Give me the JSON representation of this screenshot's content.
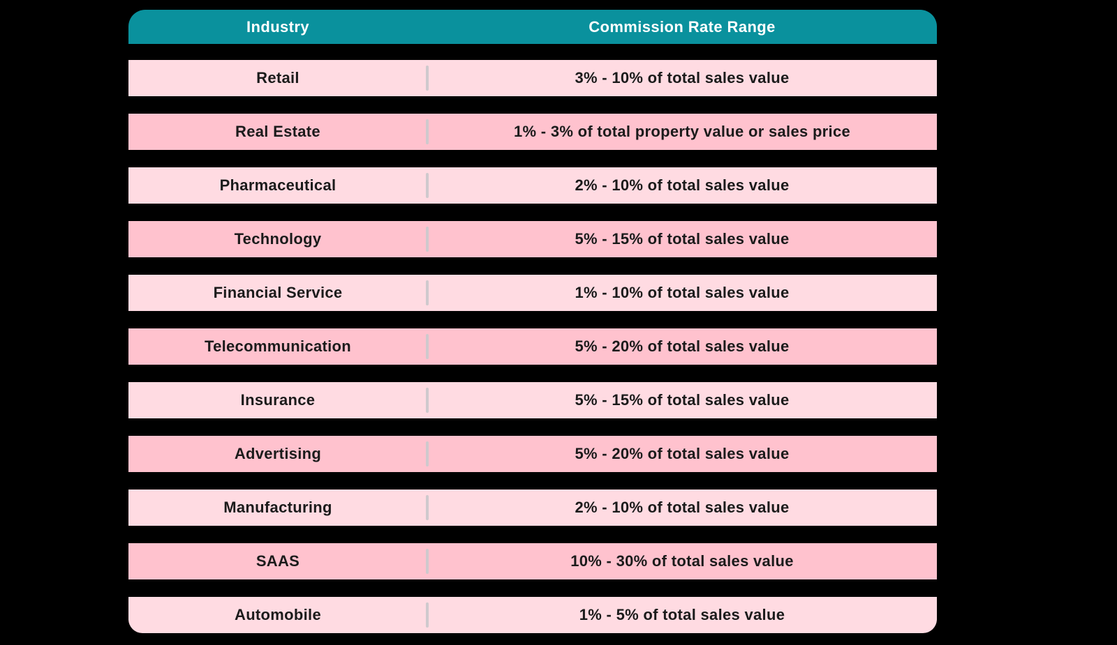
{
  "page": {
    "background": "#000000"
  },
  "table": {
    "header": {
      "industry_label": "Industry",
      "rate_label": "Commission Rate Range"
    },
    "rows": [
      {
        "industry": "Retail",
        "rate": "3% - 10% of total sales value"
      },
      {
        "industry": "Real Estate",
        "rate": "1% - 3% of total property value or sales price"
      },
      {
        "industry": "Pharmaceutical",
        "rate": "2% - 10% of total sales value"
      },
      {
        "industry": "Technology",
        "rate": "5% - 15% of total sales value"
      },
      {
        "industry": "Financial Service",
        "rate": "1% - 10% of total sales value"
      },
      {
        "industry": "Telecommunication",
        "rate": "5% - 20% of total sales value"
      },
      {
        "industry": "Insurance",
        "rate": "5% - 15% of total sales value"
      },
      {
        "industry": "Advertising",
        "rate": "5% - 20% of total sales value"
      },
      {
        "industry": "Manufacturing",
        "rate": "2% - 10% of total sales value"
      },
      {
        "industry": "SAAS",
        "rate": "10% - 30% of total sales value"
      },
      {
        "industry": "Automobile",
        "rate": "1% - 5% of total sales value"
      }
    ],
    "colors": {
      "header_bg": "#0a919d",
      "header_text": "#ffffff",
      "row_light": "#ffdbe2",
      "row_dark": "#ffc2ce",
      "row_text": "#1b1b1b",
      "divider": "#cfc9cd",
      "page_bg": "#000000"
    }
  },
  "chart_data": {
    "type": "table",
    "title": "",
    "columns": [
      "Industry",
      "Commission Rate Range"
    ],
    "rows": [
      [
        "Retail",
        "3% - 10% of total sales value"
      ],
      [
        "Real Estate",
        "1% - 3% of total property value or sales price"
      ],
      [
        "Pharmaceutical",
        "2% - 10% of total sales value"
      ],
      [
        "Technology",
        "5% - 15% of total sales value"
      ],
      [
        "Financial Service",
        "1% - 10% of total sales value"
      ],
      [
        "Telecommunication",
        "5% - 20% of total sales value"
      ],
      [
        "Insurance",
        "5% - 15% of total sales value"
      ],
      [
        "Advertising",
        "5% - 20% of total sales value"
      ],
      [
        "Manufacturing",
        "2% - 10% of total sales value"
      ],
      [
        "SAAS",
        "10% - 30% of total sales value"
      ],
      [
        "Automobile",
        "1% - 5% of total sales value"
      ]
    ],
    "commission_ranges_pct": [
      {
        "industry": "Retail",
        "min": 3,
        "max": 10,
        "basis": "total sales value"
      },
      {
        "industry": "Real Estate",
        "min": 1,
        "max": 3,
        "basis": "total property value or sales price"
      },
      {
        "industry": "Pharmaceutical",
        "min": 2,
        "max": 10,
        "basis": "total sales value"
      },
      {
        "industry": "Technology",
        "min": 5,
        "max": 15,
        "basis": "total sales value"
      },
      {
        "industry": "Financial Service",
        "min": 1,
        "max": 10,
        "basis": "total sales value"
      },
      {
        "industry": "Telecommunication",
        "min": 5,
        "max": 20,
        "basis": "total sales value"
      },
      {
        "industry": "Insurance",
        "min": 5,
        "max": 15,
        "basis": "total sales value"
      },
      {
        "industry": "Advertising",
        "min": 5,
        "max": 20,
        "basis": "total sales value"
      },
      {
        "industry": "Manufacturing",
        "min": 2,
        "max": 10,
        "basis": "total sales value"
      },
      {
        "industry": "SAAS",
        "min": 10,
        "max": 30,
        "basis": "total sales value"
      },
      {
        "industry": "Automobile",
        "min": 1,
        "max": 5,
        "basis": "total sales value"
      }
    ],
    "layout": {
      "header_style": "teal banner, rounded top corners",
      "row_style": "alternating light/dark pink stripes on black background, rounded bottom corners on last row"
    }
  }
}
